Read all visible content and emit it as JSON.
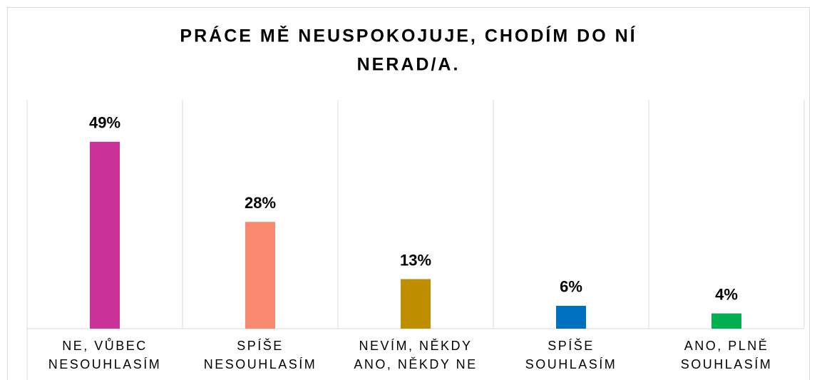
{
  "chart_data": {
    "type": "bar",
    "title": [
      "PRÁCE MĚ NEUSPOKOJUJE, CHODÍM DO NÍ",
      "NERAD/A."
    ],
    "categories": [
      [
        "NE, VŮBEC",
        "NESOUHLASÍM"
      ],
      [
        "SPÍŠE",
        "NESOUHLASÍM"
      ],
      [
        "NEVÍM, NĚKDY",
        "ANO, NĚKDY NE"
      ],
      [
        "SPÍŠE",
        "SOUHLASÍM"
      ],
      [
        "ANO, PLNĚ",
        "SOUHLASÍM"
      ]
    ],
    "values": [
      49,
      28,
      13,
      6,
      4
    ],
    "value_labels": [
      "49%",
      "28%",
      "13%",
      "6%",
      "4%"
    ],
    "colors": [
      "#cc3399",
      "#f98a6f",
      "#bf8f00",
      "#0070c0",
      "#00b050"
    ],
    "ylim": [
      0,
      60
    ]
  }
}
